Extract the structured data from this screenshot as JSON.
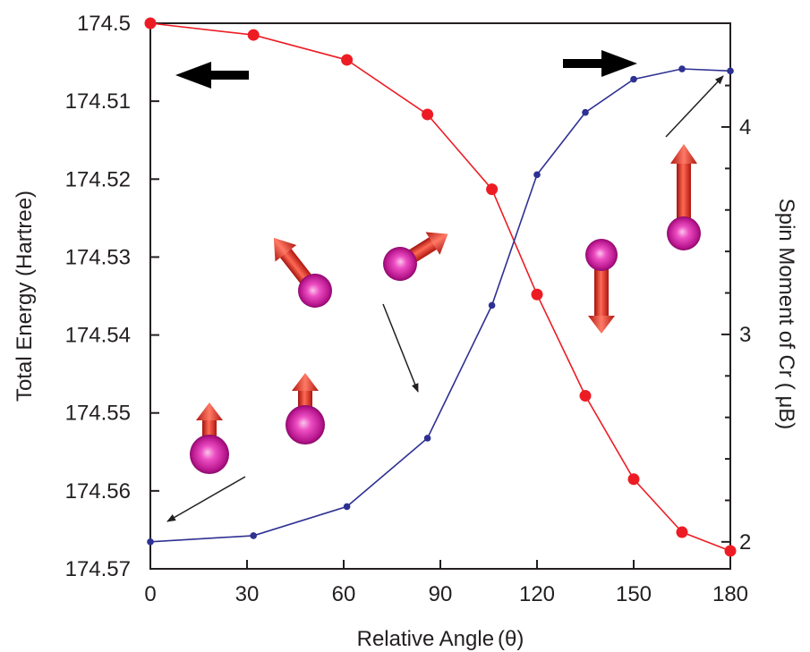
{
  "chart_data": {
    "type": "line",
    "title": "",
    "xlabel": "Relative Angle",
    "xlabel_symbol": "(θ)",
    "ylabel_left": "Total Energy (Hartree)",
    "ylabel_right": "Spin Moment of Cr",
    "ylabel_right_unit": "( μB)",
    "xlim": [
      0,
      180
    ],
    "ylim_left": [
      174.57,
      174.5
    ],
    "ylim_right": [
      1.87,
      4.5
    ],
    "x_ticks": [
      0,
      30,
      60,
      90,
      120,
      150,
      180
    ],
    "y_left_ticks": [
      174.5,
      174.51,
      174.52,
      174.53,
      174.54,
      174.55,
      174.56,
      174.57
    ],
    "y_right_ticks": [
      2,
      3,
      4
    ],
    "grid": false,
    "series": [
      {
        "axis": "left",
        "color": "#ed1c24",
        "x": [
          0,
          32,
          61,
          86,
          106,
          120,
          135,
          150,
          165,
          180
        ],
        "values": [
          174.5,
          174.5015,
          174.5047,
          174.5117,
          174.5213,
          174.5348,
          174.5478,
          174.5585,
          174.5653,
          174.5677
        ]
      },
      {
        "axis": "right",
        "color": "#2e3192",
        "x": [
          0,
          32,
          61,
          86,
          106,
          120,
          135,
          150,
          165,
          180
        ],
        "values": [
          2.0,
          2.03,
          2.17,
          2.5,
          3.14,
          3.77,
          4.07,
          4.23,
          4.28,
          4.27
        ]
      }
    ],
    "direction_arrows": [
      "left-axis",
      "right-axis"
    ],
    "spin_insets": [
      {
        "angle_deg": 0,
        "label": "spin-0"
      },
      {
        "angle_deg": 0,
        "label": "spin-30"
      },
      {
        "angle_deg": 35,
        "label": "spin-60"
      },
      {
        "angle_deg": 55,
        "label": "spin-90"
      },
      {
        "angle_deg": 180,
        "label": "spin-150"
      },
      {
        "angle_deg": 0,
        "label": "spin-180"
      }
    ]
  }
}
